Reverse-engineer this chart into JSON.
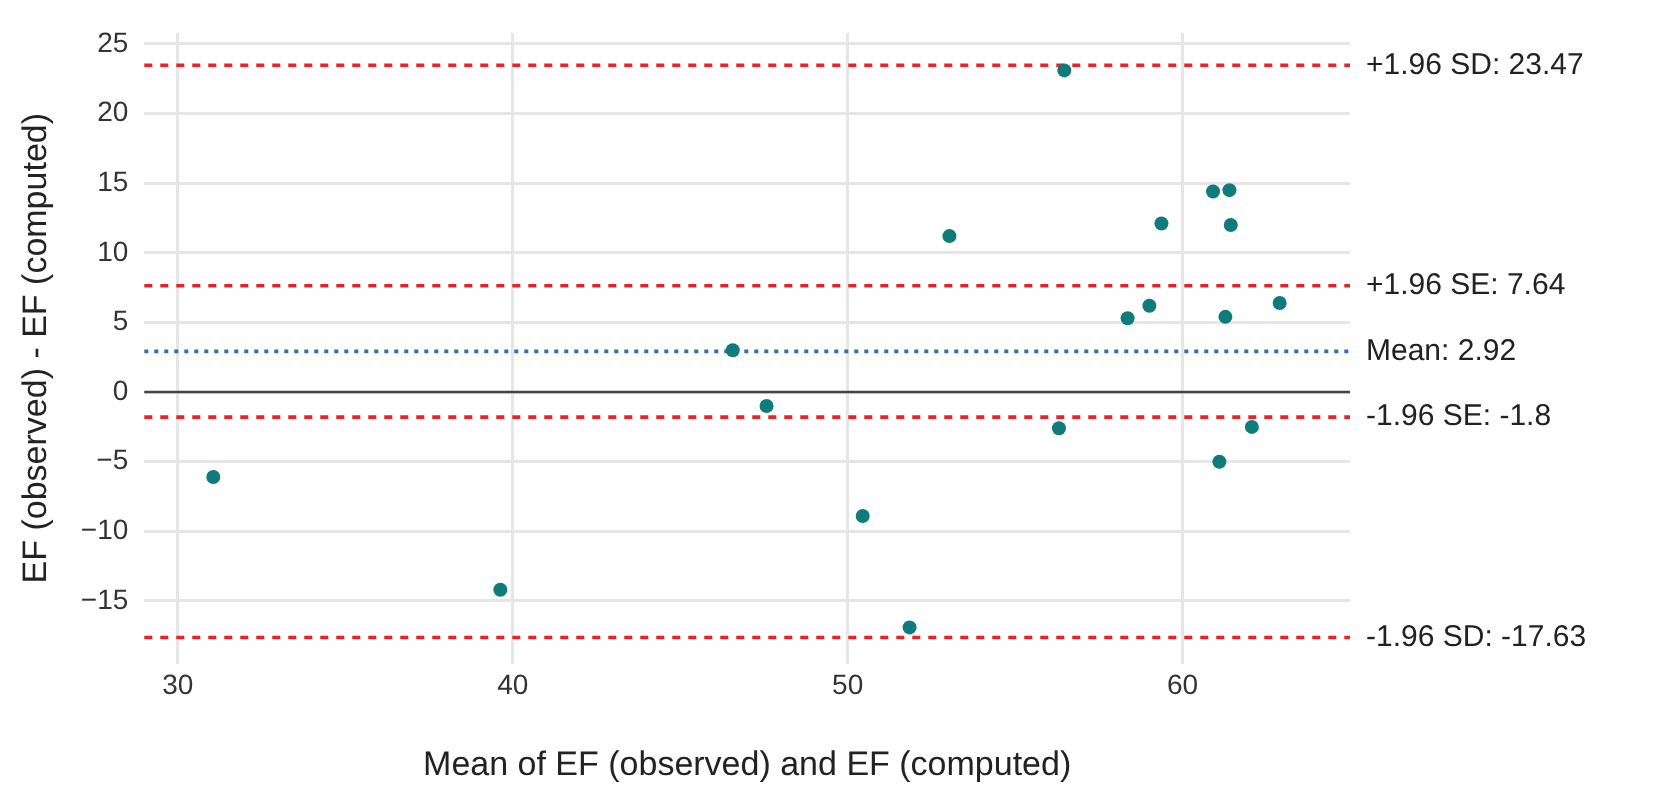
{
  "chart_data": {
    "type": "scatter",
    "xlabel": "Mean of EF (observed) and EF (computed)",
    "ylabel": "EF (observed) - EF (computed)",
    "x": [
      31.06,
      39.63,
      46.57,
      47.58,
      56.47,
      60.91,
      61.4,
      53.04,
      59.37,
      61.44,
      58.36,
      59.01,
      61.28,
      62.9,
      56.31,
      62.07,
      61.1,
      50.45,
      51.85
    ],
    "series": [
      {
        "color": "#0f7b7b",
        "values": [
          -6.1,
          -14.2,
          3.0,
          -1.0,
          23.1,
          14.4,
          14.5,
          11.2,
          12.1,
          12.0,
          5.3,
          6.2,
          5.4,
          6.4,
          -2.6,
          -2.5,
          -5.0,
          -8.9,
          -16.9
        ]
      }
    ],
    "xlim": [
      29,
      65
    ],
    "xticks": [
      30,
      40,
      50,
      60
    ],
    "ylim": [
      -19.5,
      25.8
    ],
    "yticks": [
      {
        "value": -15,
        "label": "−15"
      },
      {
        "value": -10,
        "label": "−10"
      },
      {
        "value": -5,
        "label": "−5"
      },
      0,
      5,
      10,
      15,
      20,
      25
    ],
    "grid": true,
    "marker": "circle",
    "ref_lines": [
      {
        "axis": "y",
        "value": 23.47,
        "label": "+1.96 SD: 23.47",
        "color": "#e3242b",
        "line_style": "dashed"
      },
      {
        "axis": "y",
        "value": 7.64,
        "label": "+1.96 SE: 7.64",
        "color": "#e3242b",
        "line_style": "dashed"
      },
      {
        "axis": "y",
        "value": 2.92,
        "label": "Mean: 2.92",
        "color": "#2e6fb5",
        "line_style": "dotted"
      },
      {
        "axis": "y",
        "value": 0,
        "color": "#444444",
        "line_style": "solid"
      },
      {
        "axis": "y",
        "value": -1.8,
        "label": "-1.96 SE: -1.8",
        "color": "#e3242b",
        "line_style": "dashed"
      },
      {
        "axis": "y",
        "value": -17.63,
        "label": "-1.96 SD: -17.63",
        "color": "#e3242b",
        "line_style": "dashed"
      }
    ]
  }
}
